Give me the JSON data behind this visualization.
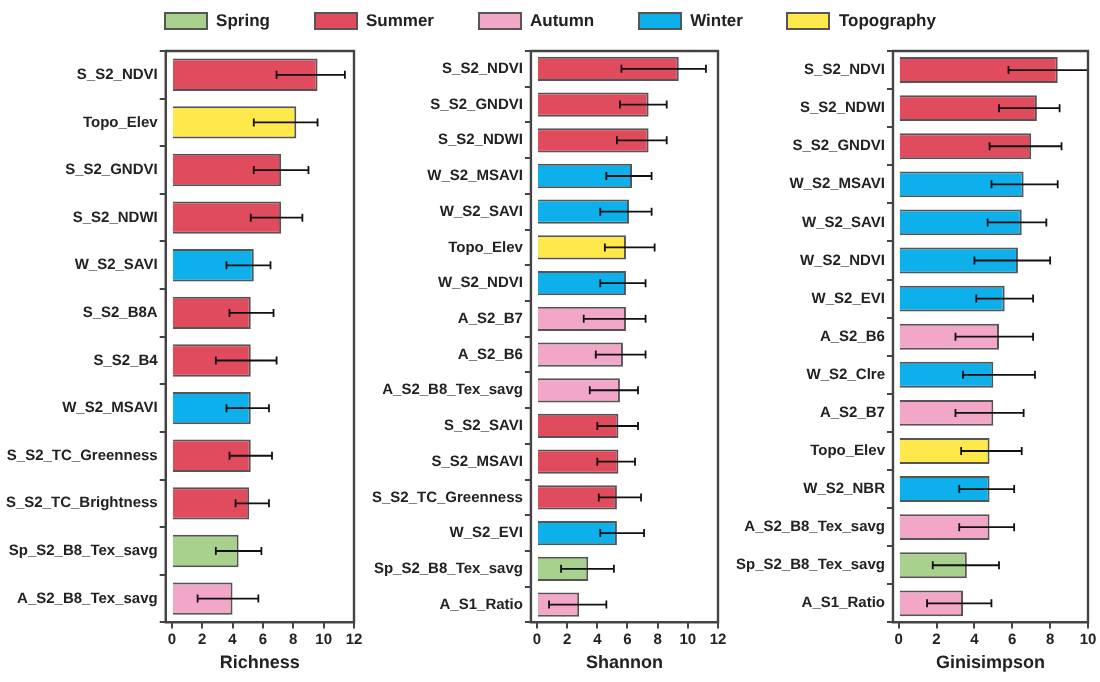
{
  "chart_data": [
    {
      "type": "bar",
      "orientation": "horizontal",
      "stacked": true,
      "legend": "top",
      "xlabel": "Richness",
      "xlim": [
        -0.4,
        12
      ],
      "xticks": [
        0,
        2,
        4,
        6,
        8,
        10,
        12
      ],
      "categories": [
        "S_S2_NDVI",
        "Topo_Elev",
        "S_S2_GNDVI",
        "S_S2_NDWI",
        "W_S2_SAVI",
        "S_S2_B8A",
        "S_S2_B4",
        "W_S2_MSAVI",
        "S_S2_TC_Greenness",
        "S_S2_TC_Brightness",
        "Sp_S2_B8_Tex_savg",
        "A_S2_B8_Tex_savg"
      ],
      "series": [
        {
          "name": "Spring",
          "color": "#a9d18e",
          "values": [
            null,
            null,
            null,
            null,
            null,
            null,
            null,
            null,
            null,
            null,
            4.4,
            null
          ],
          "errors": [
            null,
            null,
            null,
            null,
            null,
            null,
            null,
            null,
            null,
            null,
            [
              2.9,
              5.9
            ],
            null
          ]
        },
        {
          "name": "Summer",
          "color": "#e04b5e",
          "values": [
            9.6,
            null,
            7.2,
            7.2,
            null,
            5.2,
            5.2,
            null,
            5.2,
            5.1,
            null,
            null
          ],
          "errors": [
            [
              6.9,
              11.4
            ],
            null,
            [
              5.4,
              9.0
            ],
            [
              5.2,
              8.6
            ],
            null,
            [
              3.8,
              6.7
            ],
            [
              2.9,
              6.9
            ],
            null,
            [
              3.8,
              6.6
            ],
            [
              4.2,
              6.4
            ],
            null,
            null
          ]
        },
        {
          "name": "Autumn",
          "color": "#f2a7c9",
          "values": [
            null,
            null,
            null,
            null,
            null,
            null,
            null,
            null,
            null,
            null,
            null,
            4.0
          ],
          "errors": [
            null,
            null,
            null,
            null,
            null,
            null,
            null,
            null,
            null,
            null,
            null,
            [
              1.7,
              5.7
            ]
          ]
        },
        {
          "name": "Winter",
          "color": "#0db0ea",
          "values": [
            null,
            null,
            null,
            null,
            5.4,
            null,
            null,
            5.2,
            null,
            null,
            null,
            null
          ],
          "errors": [
            null,
            null,
            null,
            null,
            [
              3.6,
              6.5
            ],
            null,
            null,
            [
              3.6,
              6.4
            ],
            null,
            null,
            null,
            null
          ]
        },
        {
          "name": "Topography",
          "color": "#ffe84a",
          "values": [
            null,
            8.2,
            null,
            null,
            null,
            null,
            null,
            null,
            null,
            null,
            null,
            null
          ],
          "errors": [
            null,
            [
              5.4,
              9.6
            ],
            null,
            null,
            null,
            null,
            null,
            null,
            null,
            null,
            null,
            null
          ]
        }
      ]
    },
    {
      "type": "bar",
      "orientation": "horizontal",
      "stacked": true,
      "xlabel": "Shannon",
      "xlim": [
        -0.4,
        12
      ],
      "xticks": [
        0,
        2,
        4,
        6,
        8,
        10,
        12
      ],
      "categories": [
        "S_S2_NDVI",
        "S_S2_GNDVI",
        "S_S2_NDWI",
        "W_S2_MSAVI",
        "W_S2_SAVI",
        "Topo_Elev",
        "W_S2_NDVI",
        "A_S2_B7",
        "A_S2_B6",
        "A_S2_B8_Tex_savg",
        "S_S2_SAVI",
        "S_S2_MSAVI",
        "S_S2_TC_Greenness",
        "W_S2_EVI",
        "Sp_S2_B8_Tex_savg",
        "A_S1_Ratio"
      ],
      "series": [
        {
          "color": "#a9d18e",
          "values": [
            null,
            null,
            null,
            null,
            null,
            null,
            null,
            null,
            null,
            null,
            null,
            null,
            null,
            null,
            3.4,
            null
          ],
          "errors": [
            null,
            null,
            null,
            null,
            null,
            null,
            null,
            null,
            null,
            null,
            null,
            null,
            null,
            null,
            [
              1.6,
              5.1
            ],
            null
          ]
        },
        {
          "color": "#e04b5e",
          "values": [
            9.4,
            7.4,
            7.4,
            null,
            null,
            null,
            null,
            null,
            null,
            null,
            5.4,
            5.4,
            5.3,
            null,
            null,
            null
          ],
          "errors": [
            [
              5.6,
              11.2
            ],
            [
              5.5,
              8.6
            ],
            [
              5.3,
              8.6
            ],
            null,
            null,
            null,
            null,
            null,
            null,
            null,
            [
              4.0,
              6.7
            ],
            [
              4.0,
              6.5
            ],
            [
              4.1,
              6.9
            ],
            null,
            null,
            null
          ]
        },
        {
          "color": "#f2a7c9",
          "values": [
            null,
            null,
            null,
            null,
            null,
            null,
            null,
            5.9,
            5.7,
            5.5,
            null,
            null,
            null,
            null,
            null,
            2.8
          ],
          "errors": [
            null,
            null,
            null,
            null,
            null,
            null,
            null,
            [
              3.1,
              7.2
            ],
            [
              3.9,
              7.2
            ],
            [
              3.5,
              6.7
            ],
            null,
            null,
            null,
            null,
            null,
            [
              0.8,
              4.6
            ]
          ]
        },
        {
          "color": "#0db0ea",
          "values": [
            null,
            null,
            null,
            6.3,
            6.1,
            null,
            5.9,
            null,
            null,
            null,
            null,
            null,
            null,
            5.3,
            null,
            null
          ],
          "errors": [
            null,
            null,
            null,
            [
              4.6,
              7.6
            ],
            [
              4.2,
              7.6
            ],
            null,
            [
              4.2,
              7.2
            ],
            null,
            null,
            null,
            null,
            null,
            null,
            [
              4.2,
              7.1
            ],
            null,
            null
          ]
        },
        {
          "color": "#ffe84a",
          "values": [
            null,
            null,
            null,
            null,
            null,
            5.9,
            null,
            null,
            null,
            null,
            null,
            null,
            null,
            null,
            null,
            null
          ],
          "errors": [
            null,
            null,
            null,
            null,
            null,
            [
              4.5,
              7.8
            ],
            null,
            null,
            null,
            null,
            null,
            null,
            null,
            null,
            null,
            null
          ]
        }
      ]
    },
    {
      "type": "bar",
      "orientation": "horizontal",
      "stacked": true,
      "xlabel": "Ginisimpson",
      "xlim": [
        -0.3,
        10
      ],
      "xticks": [
        0,
        2,
        4,
        6,
        8,
        10
      ],
      "categories": [
        "S_S2_NDVI",
        "S_S2_NDWI",
        "S_S2_GNDVI",
        "W_S2_MSAVI",
        "W_S2_SAVI",
        "W_S2_NDVI",
        "W_S2_EVI",
        "A_S2_B6",
        "W_S2_Clre",
        "A_S2_B7",
        "Topo_Elev",
        "W_S2_NBR",
        "A_S2_B8_Tex_savg",
        "Sp_S2_B8_Tex_savg",
        "A_S1_Ratio"
      ],
      "series": [
        {
          "color": "#a9d18e",
          "values": [
            null,
            null,
            null,
            null,
            null,
            null,
            null,
            null,
            null,
            null,
            null,
            null,
            null,
            3.6,
            null
          ],
          "errors": [
            null,
            null,
            null,
            null,
            null,
            null,
            null,
            null,
            null,
            null,
            null,
            null,
            null,
            [
              1.8,
              5.3
            ],
            null
          ]
        },
        {
          "color": "#e04b5e",
          "values": [
            8.4,
            7.3,
            7.0,
            null,
            null,
            null,
            null,
            null,
            null,
            null,
            null,
            null,
            null,
            null,
            null
          ],
          "errors": [
            [
              5.8,
              10.0
            ],
            [
              5.3,
              8.5
            ],
            [
              4.8,
              8.6
            ],
            null,
            null,
            null,
            null,
            null,
            null,
            null,
            null,
            null,
            null,
            null,
            null
          ]
        },
        {
          "color": "#f2a7c9",
          "values": [
            null,
            null,
            null,
            null,
            null,
            null,
            null,
            5.3,
            null,
            5.0,
            null,
            null,
            4.8,
            null,
            3.4
          ],
          "errors": [
            null,
            null,
            null,
            null,
            null,
            null,
            null,
            [
              3.0,
              7.1
            ],
            null,
            [
              3.0,
              6.6
            ],
            null,
            null,
            [
              3.2,
              6.1
            ],
            null,
            [
              1.5,
              4.9
            ]
          ]
        },
        {
          "color": "#0db0ea",
          "values": [
            null,
            null,
            null,
            6.6,
            6.5,
            6.3,
            5.6,
            null,
            5.0,
            null,
            null,
            4.8,
            null,
            null,
            null
          ],
          "errors": [
            null,
            null,
            null,
            [
              4.9,
              8.4
            ],
            [
              4.7,
              7.8
            ],
            [
              4.0,
              8.0
            ],
            [
              4.1,
              7.1
            ],
            null,
            [
              3.4,
              7.2
            ],
            null,
            null,
            [
              3.2,
              6.1
            ],
            null,
            null,
            null
          ]
        },
        {
          "color": "#ffe84a",
          "values": [
            null,
            null,
            null,
            null,
            null,
            null,
            null,
            null,
            null,
            null,
            4.8,
            null,
            null,
            null,
            null
          ],
          "errors": [
            null,
            null,
            null,
            null,
            null,
            null,
            null,
            null,
            null,
            null,
            [
              3.3,
              6.5
            ],
            null,
            null,
            null,
            null
          ]
        }
      ]
    }
  ]
}
